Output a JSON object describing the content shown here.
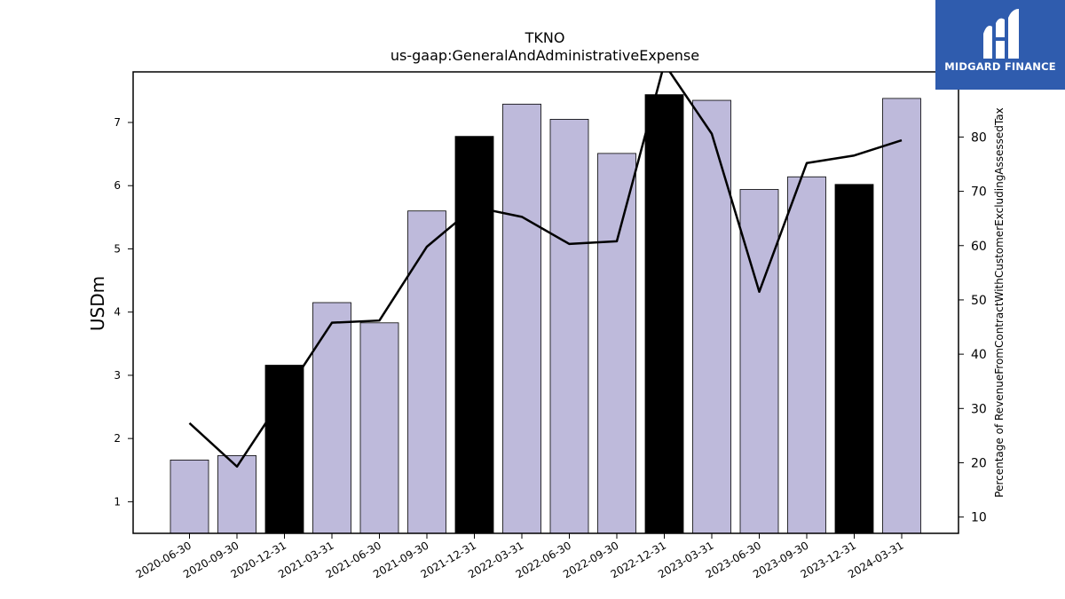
{
  "chart_data": {
    "type": "bar",
    "title": "TKNO",
    "subtitle": "us-gaap:GeneralAndAdministrativeExpense",
    "ylabel": "USDm",
    "ylabel_right": "Percentage of RevenueFromContractWithCustomerExcludingAssessedTax",
    "ylim": [
      0.5,
      7.8
    ],
    "ylim_right": [
      7,
      92
    ],
    "yticks": [
      1,
      2,
      3,
      4,
      5,
      6,
      7
    ],
    "yticks_right": [
      10,
      20,
      30,
      40,
      50,
      60,
      70,
      80,
      90
    ],
    "categories": [
      "2020-06-30",
      "2020-09-30",
      "2020-12-31",
      "2021-03-31",
      "2021-06-30",
      "2021-09-30",
      "2021-12-31",
      "2022-03-31",
      "2022-06-30",
      "2022-09-30",
      "2022-12-31",
      "2023-03-31",
      "2023-06-30",
      "2023-09-30",
      "2023-12-31",
      "2024-03-31"
    ],
    "series": [
      {
        "values": [
          1.66,
          1.73,
          3.16,
          4.15,
          3.83,
          5.6,
          6.78,
          7.29,
          7.05,
          6.51,
          7.44,
          7.35,
          5.94,
          6.14,
          6.02,
          7.38
        ],
        "highlight": [
          false,
          false,
          true,
          false,
          false,
          false,
          true,
          false,
          false,
          false,
          true,
          false,
          false,
          false,
          true,
          false
        ]
      },
      {
        "axis": "right",
        "values": [
          27.3,
          19.3,
          32.5,
          45.8,
          46.2,
          59.8,
          67.1,
          65.3,
          60.3,
          60.8,
          93.5,
          80.6,
          51.5,
          75.2,
          76.6,
          79.4
        ]
      }
    ],
    "colors": {
      "bar": "#bebadb",
      "bar_highlight": "#000000",
      "line": "#000000"
    },
    "legend": "none",
    "grid": false
  },
  "logo": {
    "text": "MIDGARD FINANCE"
  }
}
